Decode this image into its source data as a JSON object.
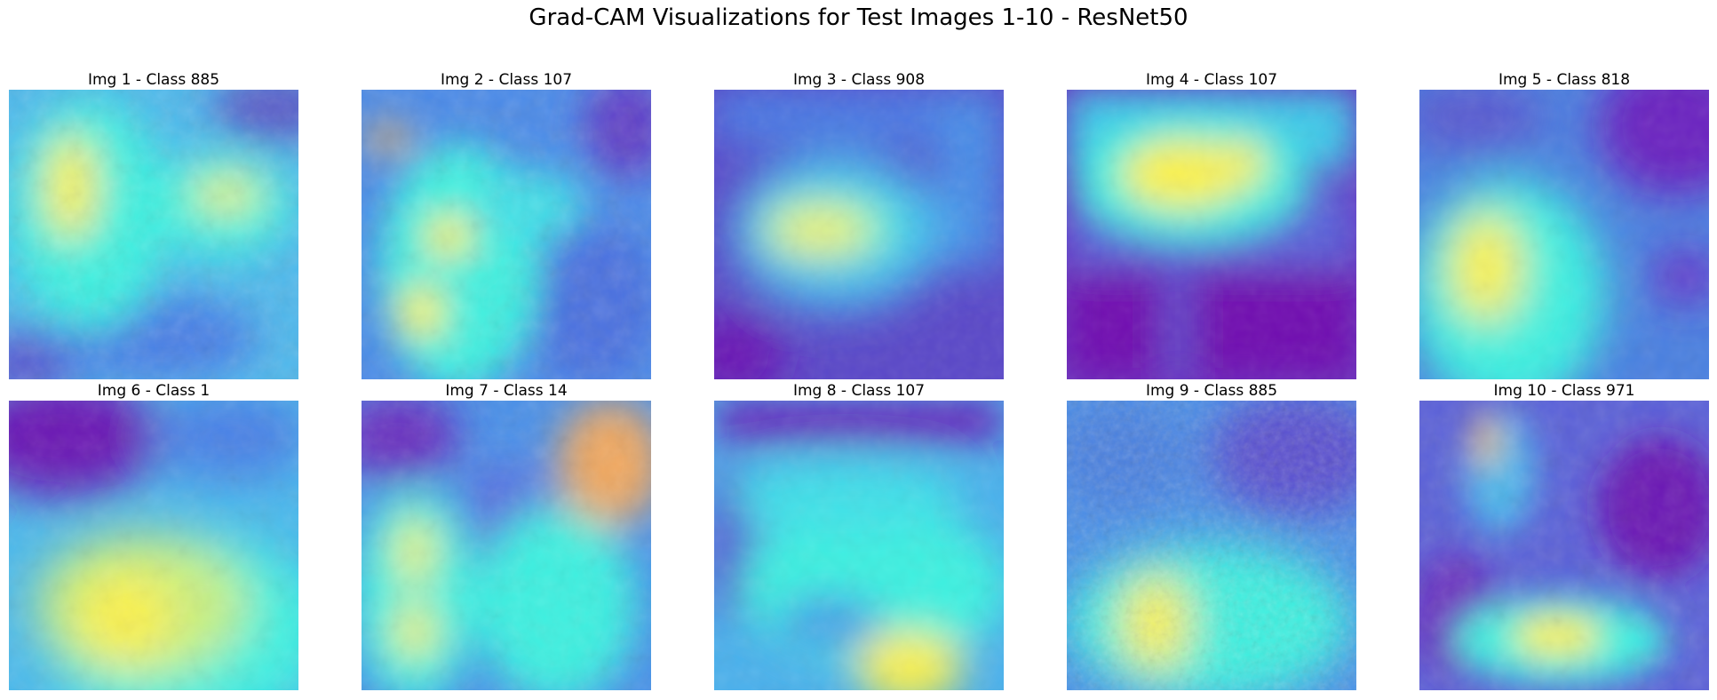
{
  "title": "Grad-CAM Visualizations for Test Images 1-10 - ResNet50",
  "panels": [
    {
      "label": "Img 1 - Class 885"
    },
    {
      "label": "Img 2 - Class 107"
    },
    {
      "label": "Img 3 - Class 908"
    },
    {
      "label": "Img 4 - Class 107"
    },
    {
      "label": "Img 5 - Class 818"
    },
    {
      "label": "Img 6 - Class 1"
    },
    {
      "label": "Img 7 - Class 14"
    },
    {
      "label": "Img 8 - Class 107"
    },
    {
      "label": "Img 9 - Class 885"
    },
    {
      "label": "Img 10 - Class 971"
    }
  ],
  "colors": {
    "low": "#6a16b4",
    "mid_low": "#4a7fe6",
    "mid": "#3ef0e0",
    "high": "#fcf14a",
    "hot": "#f0a860"
  }
}
